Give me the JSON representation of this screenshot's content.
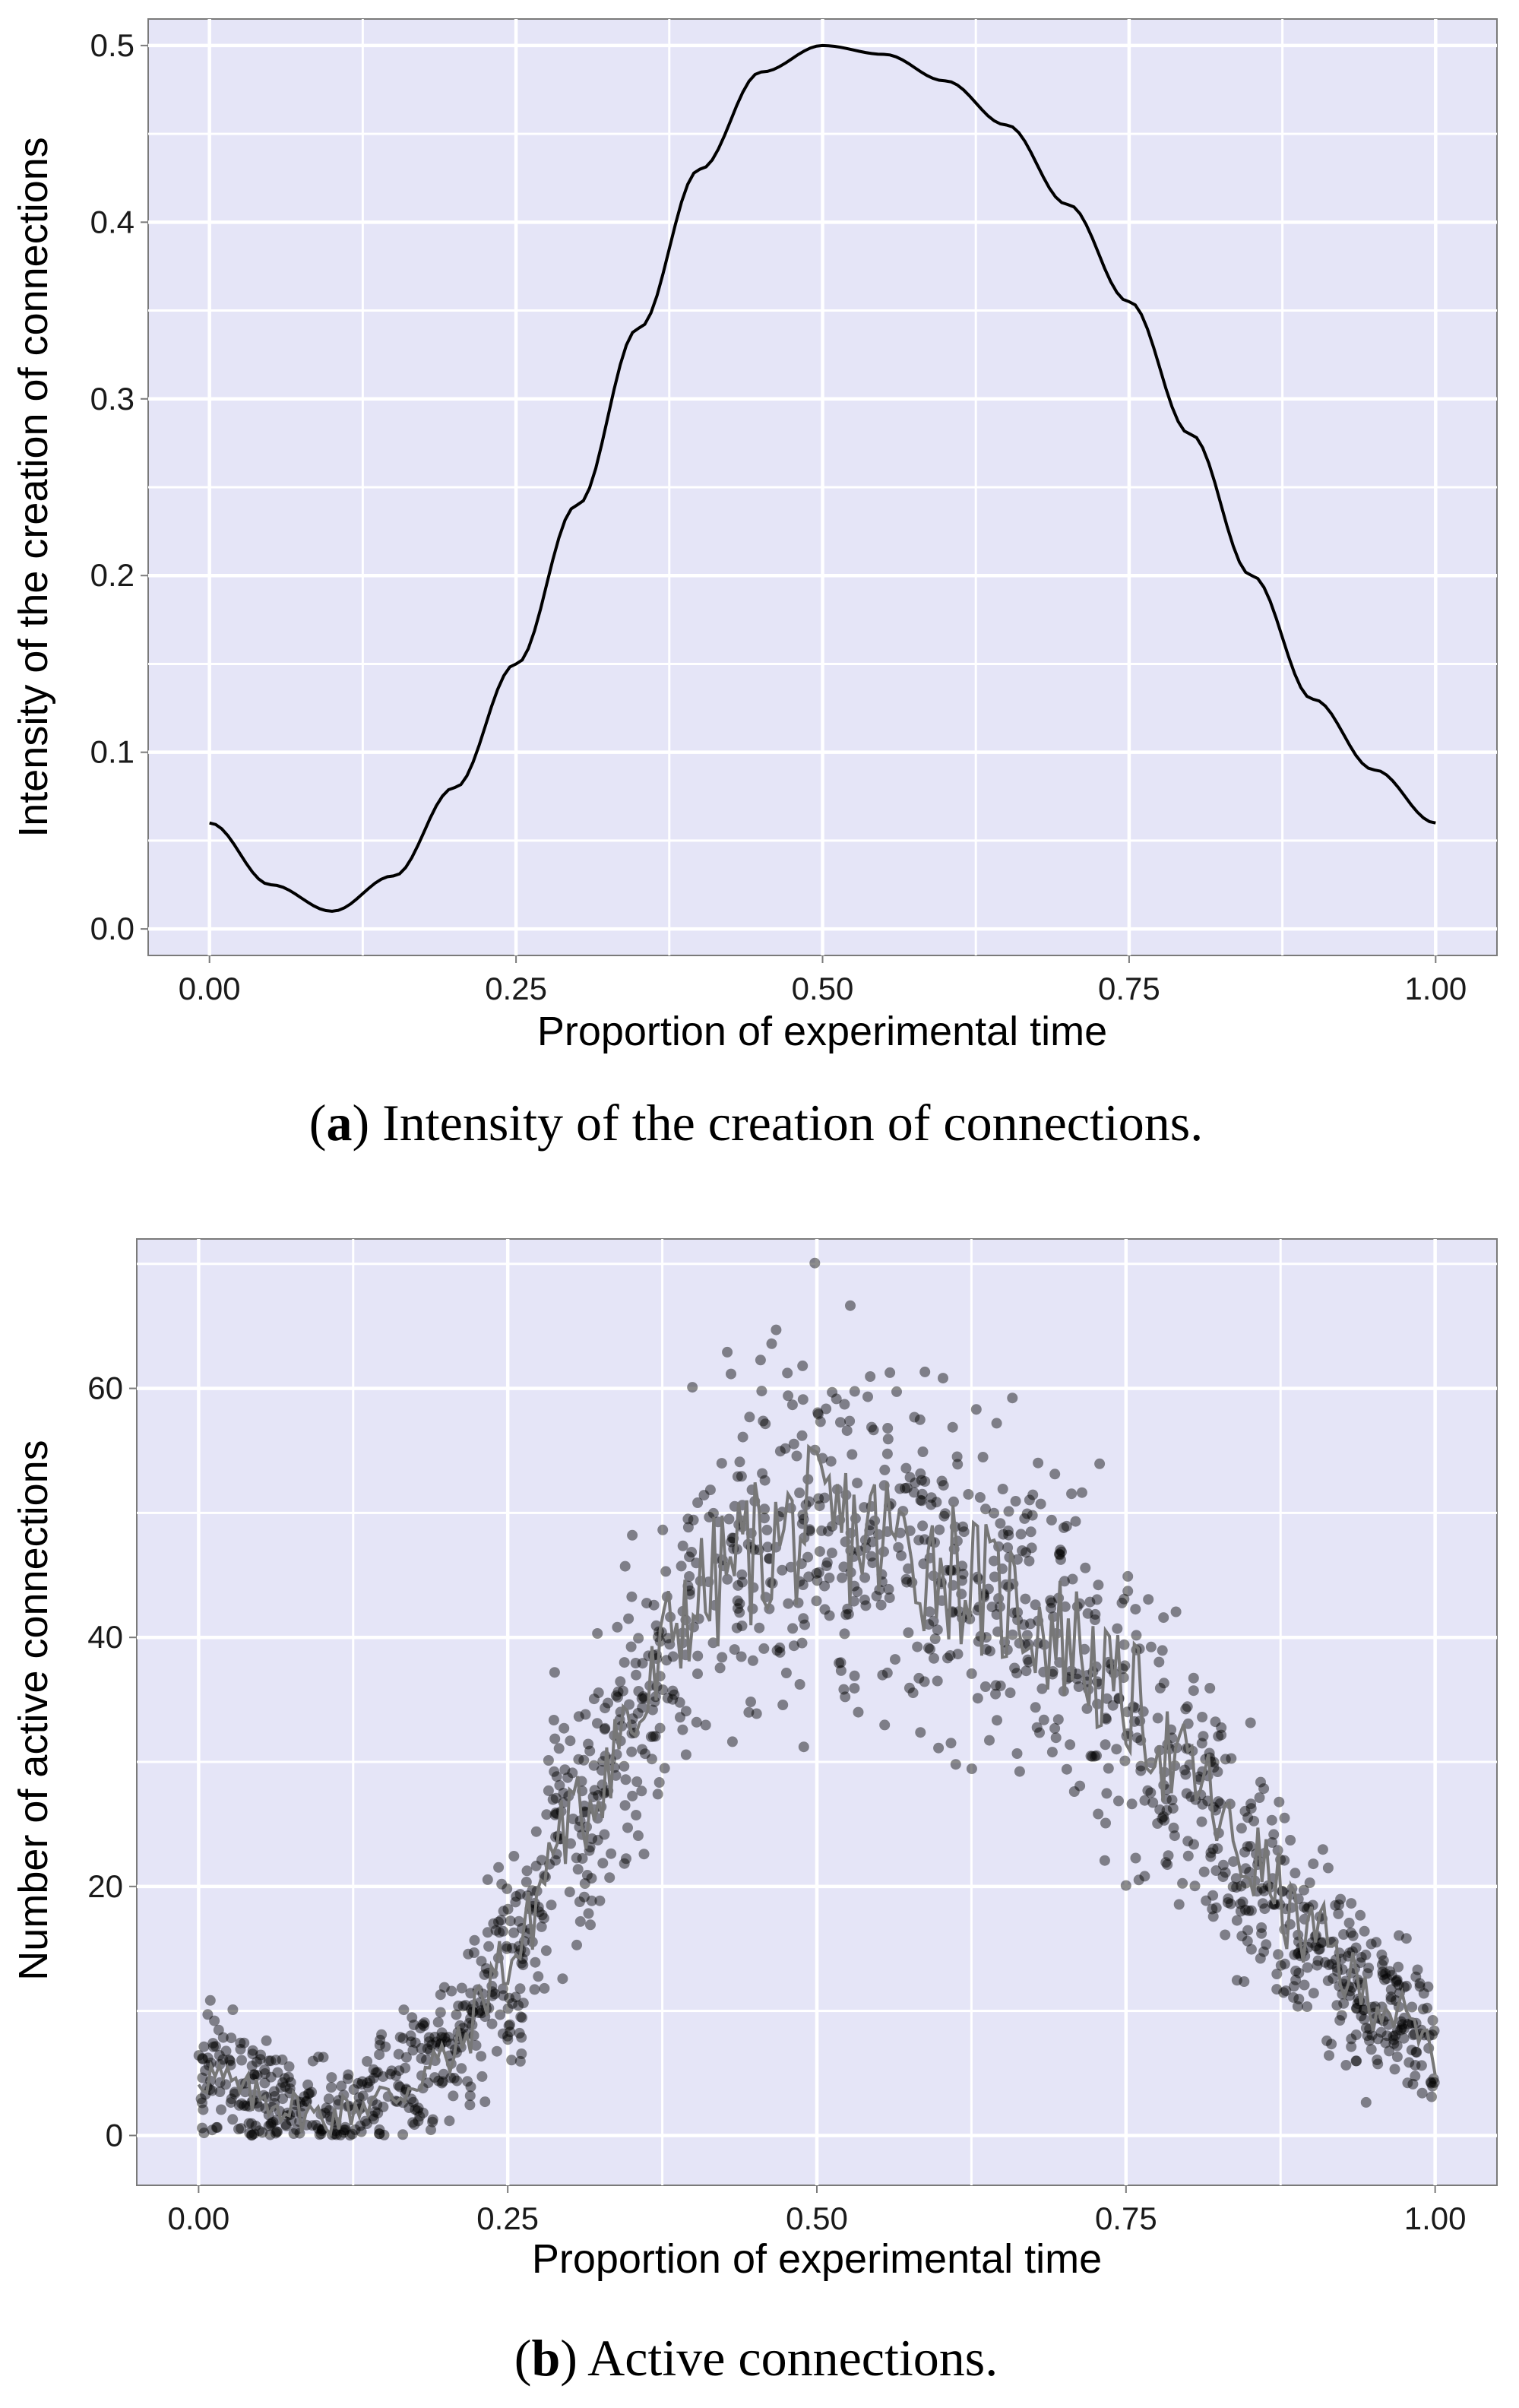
{
  "colors": {
    "panel_bg": "#e5e5f7",
    "grid": "#ffffff",
    "line": "#000000",
    "points": "#000000",
    "mean_line": "#777777"
  },
  "chart_data": [
    {
      "panel": "a",
      "type": "line",
      "title": "",
      "xlabel": "Proportion of experimental time",
      "ylabel": "Intensity of the creation of connections",
      "xlim": [
        -0.05,
        1.05
      ],
      "ylim": [
        -0.015,
        0.515
      ],
      "xticks": [
        0.0,
        0.25,
        0.5,
        0.75,
        1.0
      ],
      "xtick_labels": [
        "0.00",
        "0.25",
        "0.50",
        "0.75",
        "1.00"
      ],
      "yticks": [
        0.0,
        0.1,
        0.2,
        0.3,
        0.4,
        0.5
      ],
      "ytick_labels": [
        "0.0",
        "0.1",
        "0.2",
        "0.3",
        "0.4",
        "0.5"
      ],
      "grid": true,
      "series": [
        {
          "name": "intensity",
          "x": [
            0.0,
            0.05,
            0.1,
            0.15,
            0.2,
            0.25,
            0.3,
            0.35,
            0.4,
            0.45,
            0.5,
            0.55,
            0.6,
            0.65,
            0.7,
            0.75,
            0.8,
            0.85,
            0.9,
            0.95,
            1.0
          ],
          "y": [
            0.06,
            0.025,
            0.01,
            0.03,
            0.08,
            0.15,
            0.24,
            0.34,
            0.43,
            0.485,
            0.5,
            0.495,
            0.48,
            0.455,
            0.41,
            0.355,
            0.28,
            0.2,
            0.13,
            0.09,
            0.06
          ]
        }
      ],
      "caption_label": "a",
      "caption_text": " Intensity of the creation of connections."
    },
    {
      "panel": "b",
      "type": "scatter",
      "title": "",
      "xlabel": "Proportion of experimental time",
      "ylabel": "Number of active connections",
      "xlim": [
        -0.05,
        1.05
      ],
      "ylim": [
        -4,
        72
      ],
      "xticks": [
        0.0,
        0.25,
        0.5,
        0.75,
        1.0
      ],
      "xtick_labels": [
        "0.00",
        "0.25",
        "0.50",
        "0.75",
        "1.00"
      ],
      "yticks": [
        0,
        20,
        40,
        60
      ],
      "ytick_labels": [
        "0",
        "20",
        "40",
        "60"
      ],
      "grid": true,
      "trend": {
        "x": [
          0.0,
          0.05,
          0.1,
          0.15,
          0.2,
          0.25,
          0.3,
          0.35,
          0.4,
          0.45,
          0.5,
          0.55,
          0.6,
          0.65,
          0.7,
          0.75,
          0.8,
          0.85,
          0.9,
          0.95,
          1.0
        ],
        "y": [
          5,
          3,
          1.5,
          3,
          6,
          14,
          25,
          33,
          43,
          47,
          49,
          48,
          46,
          43,
          40,
          35,
          29,
          22,
          16,
          11,
          7
        ]
      },
      "scatter_spread": 6,
      "caption_label": "b",
      "caption_text": " Active connections."
    }
  ]
}
